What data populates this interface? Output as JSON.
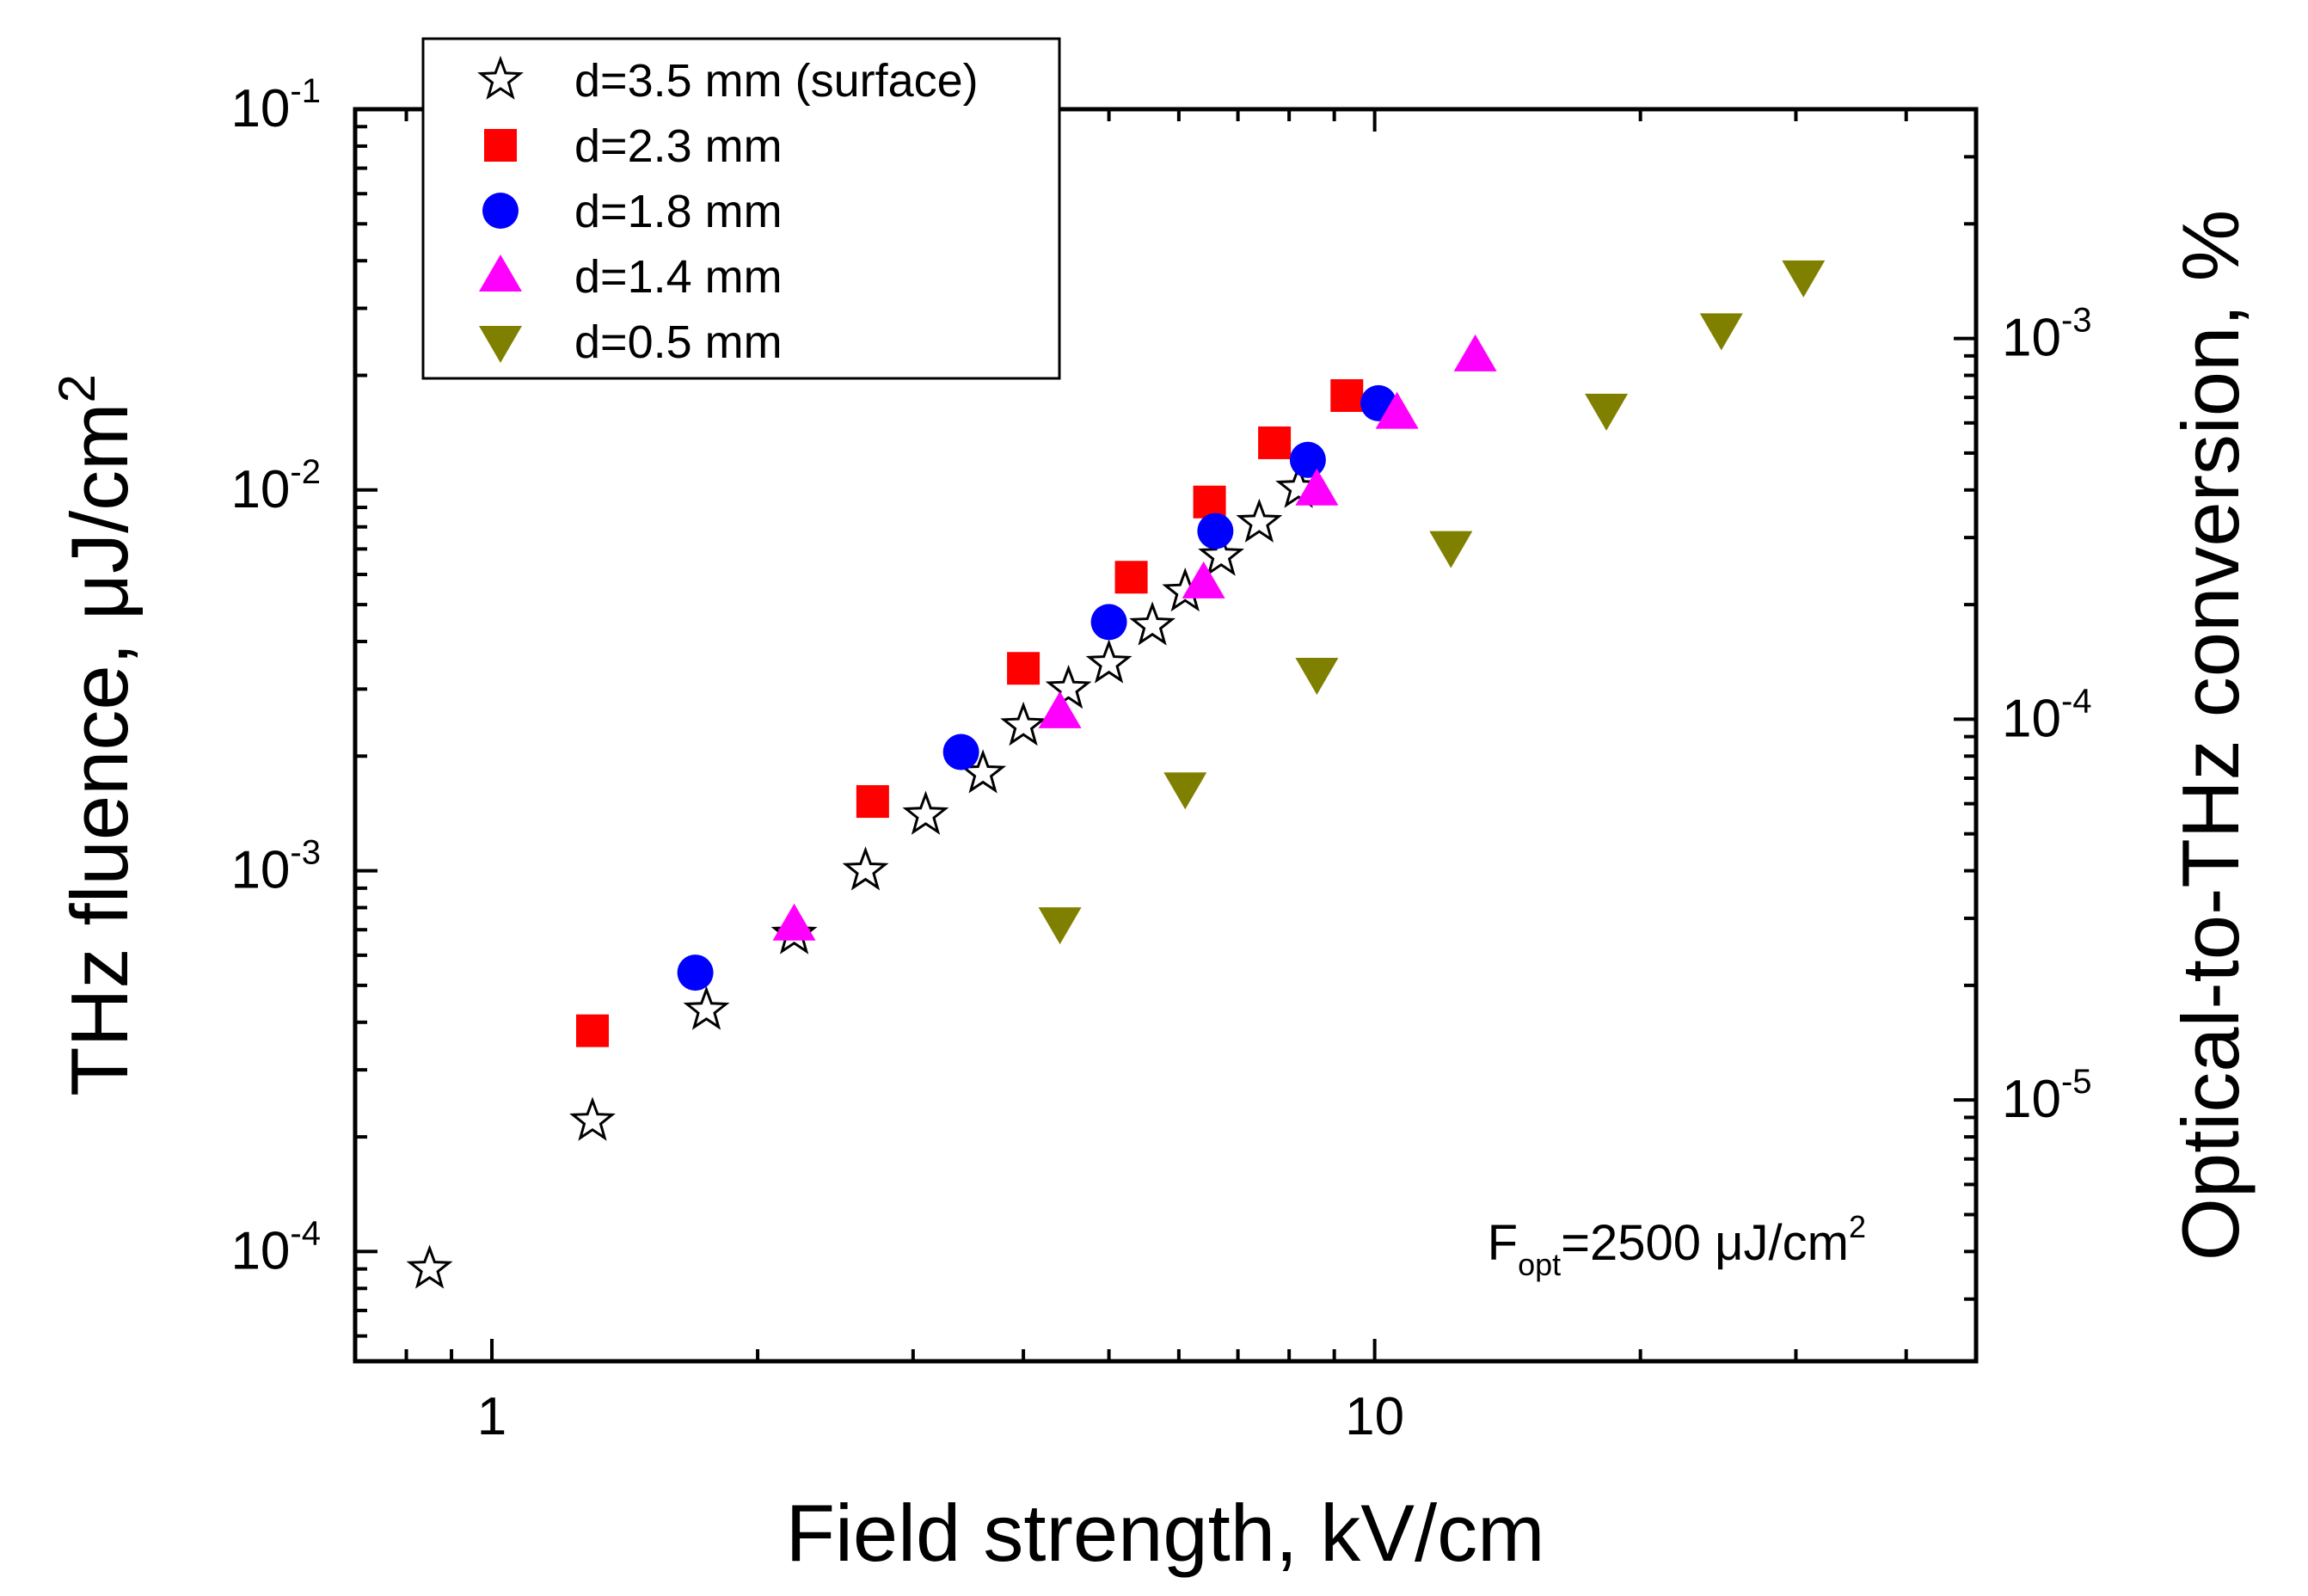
{
  "chart_data": {
    "type": "scatter",
    "title": "",
    "xlabel": "Field strength, kV/cm",
    "ylabel": "THz fluence, μJ/cm",
    "ylabel_sup": "2",
    "y2label": "Optical-to-THz conversion, %",
    "xscale": "log",
    "yscale": "log",
    "y2scale": "log",
    "xlim": [
      0.7,
      48
    ],
    "ylim": [
      5.15e-05,
      0.1
    ],
    "y2lim": [
      2.06e-06,
      0.004
    ],
    "x_ticks": [
      {
        "value": 1,
        "label": "1"
      },
      {
        "value": 10,
        "label": "10"
      }
    ],
    "y_ticks": [
      {
        "value": 0.0001,
        "base": "10",
        "exp": "-4"
      },
      {
        "value": 0.001,
        "base": "10",
        "exp": "-3"
      },
      {
        "value": 0.01,
        "base": "10",
        "exp": "-2"
      },
      {
        "value": 0.1,
        "base": "10",
        "exp": "-1"
      }
    ],
    "y2_ticks": [
      {
        "value": 1e-05,
        "base": "10",
        "exp": "-5"
      },
      {
        "value": 0.0001,
        "base": "10",
        "exp": "-4"
      },
      {
        "value": 0.001,
        "base": "10",
        "exp": "-3"
      }
    ],
    "legend_position": "top-left",
    "annotation": {
      "main": "F",
      "sub": "opt",
      "rest": "=2500 μJ/cm",
      "sup": "2"
    },
    "series": [
      {
        "name": "d=3.5 mm (surface)",
        "marker": "star",
        "color": "#000000",
        "fill": "#ffffff",
        "points": [
          [
            0.85,
            9e-05
          ],
          [
            1.3,
            0.00022
          ],
          [
            1.75,
            0.00043
          ],
          [
            2.2,
            0.00068
          ],
          [
            2.65,
            0.001
          ],
          [
            3.1,
            0.0014
          ],
          [
            3.6,
            0.0018
          ],
          [
            4.0,
            0.0024
          ],
          [
            4.5,
            0.003
          ],
          [
            5.0,
            0.0035
          ],
          [
            5.6,
            0.0044
          ],
          [
            6.1,
            0.0054
          ],
          [
            6.7,
            0.0067
          ],
          [
            7.4,
            0.0082
          ],
          [
            8.2,
            0.0101
          ]
        ]
      },
      {
        "name": "d=2.3 mm",
        "marker": "square",
        "color": "#ff0000",
        "points": [
          [
            1.3,
            0.00038
          ],
          [
            2.7,
            0.00152
          ],
          [
            4.0,
            0.0034
          ],
          [
            5.3,
            0.0059
          ],
          [
            6.5,
            0.0093
          ],
          [
            7.7,
            0.0133
          ],
          [
            9.3,
            0.0177
          ]
        ]
      },
      {
        "name": "d=1.8 mm",
        "marker": "circle",
        "color": "#0000ff",
        "points": [
          [
            1.7,
            0.00054
          ],
          [
            3.4,
            0.00205
          ],
          [
            5.0,
            0.0045
          ],
          [
            6.6,
            0.0078
          ],
          [
            8.4,
            0.012
          ],
          [
            10.1,
            0.0169
          ]
        ]
      },
      {
        "name": "d=1.4 mm",
        "marker": "triangle-up",
        "color": "#ff00ff",
        "points": [
          [
            2.2,
            0.00072
          ],
          [
            4.4,
            0.0026
          ],
          [
            6.4,
            0.0057
          ],
          [
            8.6,
            0.01
          ],
          [
            10.6,
            0.0159
          ],
          [
            13.0,
            0.0225
          ]
        ]
      },
      {
        "name": "d=0.5 mm",
        "marker": "triangle-down",
        "color": "#808000",
        "points": [
          [
            4.4,
            0.00073
          ],
          [
            6.1,
            0.00165
          ],
          [
            8.6,
            0.0033
          ],
          [
            12.2,
            0.0071
          ],
          [
            18.3,
            0.0163
          ],
          [
            24.7,
            0.0265
          ],
          [
            30.6,
            0.0365
          ]
        ]
      }
    ]
  }
}
